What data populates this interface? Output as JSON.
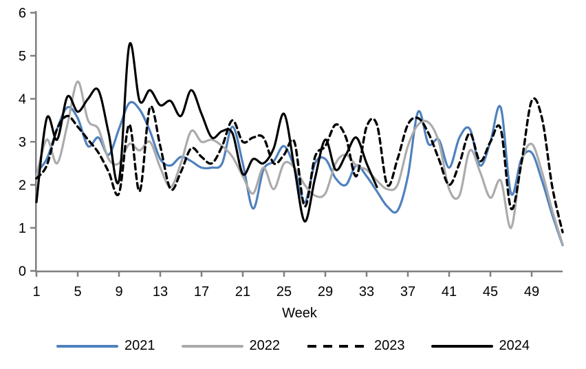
{
  "x_axis_title": "Week",
  "axis_color": "#7f7f7f",
  "text_color": "#000000",
  "chart_data": {
    "type": "line",
    "title": "",
    "xlabel": "Week",
    "ylabel": "",
    "xlim": [
      1,
      52
    ],
    "ylim": [
      0,
      6
    ],
    "grid": false,
    "legend_position": "bottom",
    "x_ticks": [
      1,
      5,
      9,
      13,
      17,
      21,
      25,
      29,
      33,
      37,
      41,
      45,
      49
    ],
    "y_ticks": [
      0,
      1,
      2,
      3,
      4,
      5,
      6
    ],
    "x_unit": "week number",
    "series": [
      {
        "name": "2021",
        "color": "#4f81bd",
        "style": "solid",
        "start_week": 1,
        "values": [
          2.3,
          2.6,
          3.3,
          3.8,
          3.55,
          2.9,
          3.1,
          2.7,
          3.3,
          3.9,
          3.75,
          3.25,
          2.6,
          2.45,
          2.65,
          2.55,
          2.4,
          2.4,
          2.5,
          3.35,
          2.5,
          1.45,
          2.35,
          2.55,
          2.9,
          2.4,
          1.6,
          2.5,
          2.6,
          2.15,
          2.0,
          2.45,
          2.2,
          1.85,
          1.5,
          1.4,
          2.2,
          3.7,
          2.95,
          3.05,
          2.4,
          3.1,
          3.3,
          2.45,
          3.0,
          3.8,
          1.8,
          2.6,
          2.75,
          2.1,
          1.3,
          0.6
        ]
      },
      {
        "name": "2022",
        "color": "#ababab",
        "style": "solid",
        "start_week": 1,
        "values": [
          2.2,
          3.05,
          2.5,
          3.4,
          4.4,
          3.5,
          3.3,
          2.6,
          2.5,
          2.95,
          2.8,
          3.0,
          2.4,
          1.95,
          2.5,
          3.25,
          3.0,
          3.05,
          2.9,
          2.65,
          2.2,
          1.8,
          2.4,
          1.9,
          2.5,
          2.4,
          2.0,
          1.75,
          1.8,
          2.5,
          2.7,
          2.45,
          2.35,
          2.1,
          1.9,
          2.0,
          2.9,
          3.4,
          3.45,
          3.0,
          1.9,
          1.75,
          2.8,
          2.3,
          1.7,
          2.1,
          1.0,
          2.5,
          2.95,
          2.3,
          1.4,
          0.62
        ]
      },
      {
        "name": "2023",
        "color": "#000000",
        "style": "dashed",
        "start_week": 1,
        "values": [
          2.15,
          2.45,
          3.3,
          3.6,
          3.35,
          3.05,
          2.75,
          2.3,
          1.8,
          3.4,
          1.85,
          3.8,
          2.9,
          1.9,
          2.3,
          2.85,
          2.65,
          2.5,
          2.9,
          3.5,
          3.0,
          3.1,
          3.1,
          2.5,
          2.7,
          3.0,
          1.5,
          2.65,
          2.9,
          3.4,
          3.1,
          2.2,
          3.35,
          3.4,
          2.0,
          2.6,
          3.4,
          3.55,
          3.2,
          2.6,
          2.0,
          2.5,
          3.2,
          2.55,
          3.0,
          3.3,
          1.45,
          2.5,
          3.95,
          3.55,
          1.95,
          0.9
        ]
      },
      {
        "name": "2024",
        "color": "#000000",
        "style": "solid",
        "start_week": 1,
        "values": [
          1.6,
          3.55,
          3.05,
          4.05,
          3.7,
          4.0,
          4.2,
          3.2,
          2.1,
          5.25,
          3.95,
          4.2,
          3.85,
          3.95,
          3.6,
          4.2,
          3.65,
          3.1,
          3.25,
          3.2,
          2.25,
          2.6,
          2.5,
          2.85,
          3.65,
          2.4,
          1.15,
          2.15,
          3.05,
          2.35,
          2.7,
          3.1,
          2.5,
          1.95
        ]
      }
    ]
  }
}
